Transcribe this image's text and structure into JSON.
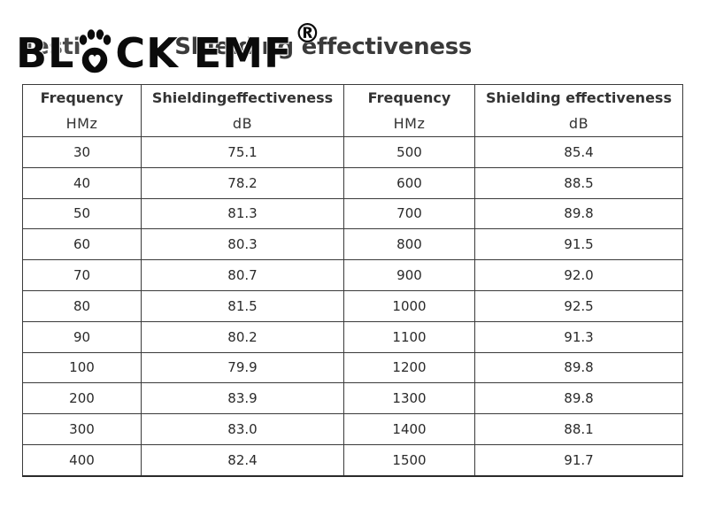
{
  "header": {
    "partial_title_left": "Testi",
    "partial_title_right": "Shielding effectiveness",
    "logo": {
      "text_left": "BL",
      "text_right": "CK EMF",
      "registered_mark": "®",
      "paw_icon": "paw-icon"
    }
  },
  "table": {
    "columns": [
      {
        "name": "Frequency",
        "unit": "HMz"
      },
      {
        "name": "Shieldingeffectiveness",
        "unit": "dB"
      },
      {
        "name": "Frequency",
        "unit": "HMz"
      },
      {
        "name": "Shielding effectiveness",
        "unit": "dB"
      }
    ],
    "rows": [
      [
        "30",
        "75.1",
        "500",
        "85.4"
      ],
      [
        "40",
        "78.2",
        "600",
        "88.5"
      ],
      [
        "50",
        "81.3",
        "700",
        "89.8"
      ],
      [
        "60",
        "80.3",
        "800",
        "91.5"
      ],
      [
        "70",
        "80.7",
        "900",
        "92.0"
      ],
      [
        "80",
        "81.5",
        "1000",
        "92.5"
      ],
      [
        "90",
        "80.2",
        "1100",
        "91.3"
      ],
      [
        "100",
        "79.9",
        "1200",
        "89.8"
      ],
      [
        "200",
        "83.9",
        "1300",
        "89.8"
      ],
      [
        "300",
        "83.0",
        "1400",
        "88.1"
      ],
      [
        "400",
        "82.4",
        "1500",
        "91.7"
      ]
    ]
  },
  "colors": {
    "text": "#2a2a2a",
    "border": "#3a3a3a",
    "logo": "#0b0b0b",
    "background": "#ffffff"
  }
}
